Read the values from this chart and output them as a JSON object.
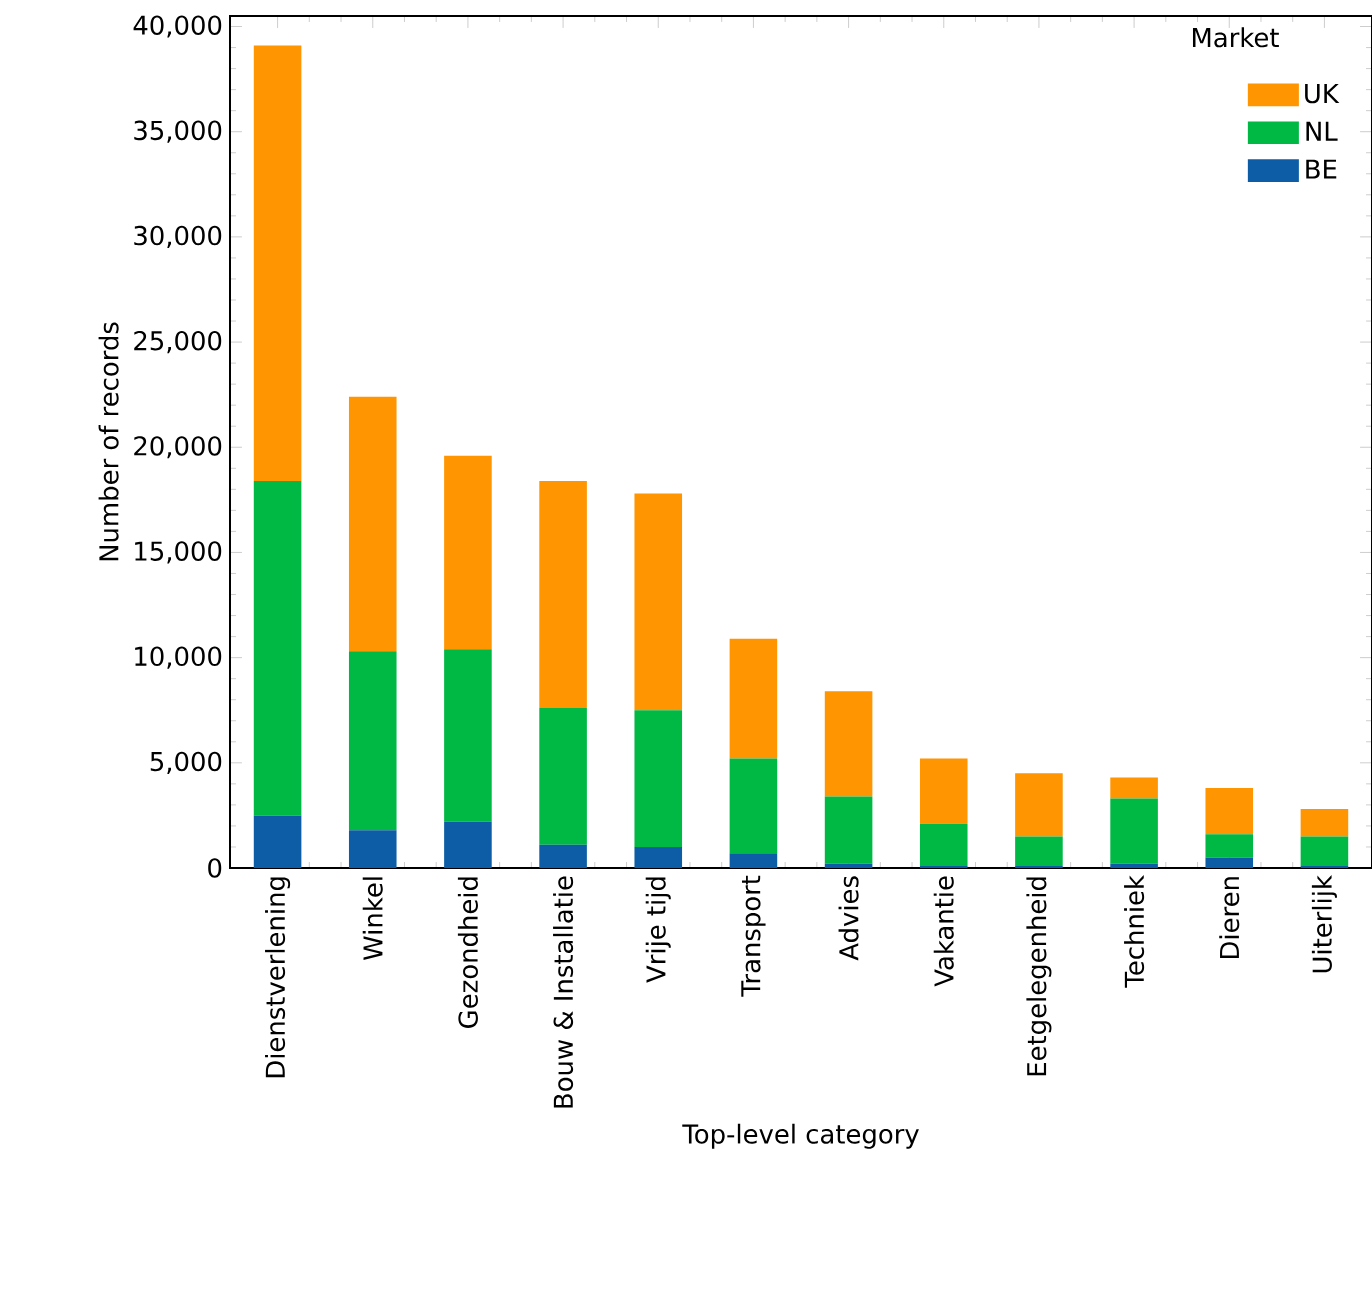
{
  "chart_data": {
    "type": "bar",
    "stacked": true,
    "xlabel": "Top-level category",
    "ylabel": "Number of records",
    "legend_title": "Market",
    "legend": "top right",
    "categories": [
      "Dienstverlening",
      "Winkel",
      "Gezondheid",
      "Bouw & Installatie",
      "Vrije tijd",
      "Transport",
      "Advies",
      "Vakantie",
      "Eetgelegenheid",
      "Techniek",
      "Dieren",
      "Uiterlijk"
    ],
    "series": [
      {
        "name": "BE",
        "color": "#0c5da5",
        "values": [
          2500,
          1800,
          2200,
          1100,
          1000,
          700,
          200,
          100,
          100,
          200,
          500,
          100
        ]
      },
      {
        "name": "NL",
        "color": "#00b945",
        "values": [
          15900,
          8500,
          8200,
          6500,
          6500,
          4500,
          3200,
          2000,
          1400,
          3100,
          1100,
          1400
        ]
      },
      {
        "name": "UK",
        "color": "#ff9500",
        "values": [
          20700,
          12100,
          9200,
          10800,
          10300,
          5700,
          5000,
          3100,
          3000,
          1000,
          2200,
          1300
        ]
      }
    ],
    "ylim": [
      0,
      40500
    ],
    "yticks": [
      {
        "value": 0,
        "label": "0"
      },
      {
        "value": 5000,
        "label": "5,000"
      },
      {
        "value": 10000,
        "label": "10,000"
      },
      {
        "value": 15000,
        "label": "15,000"
      },
      {
        "value": 20000,
        "label": "20,000"
      },
      {
        "value": 25000,
        "label": "25,000"
      },
      {
        "value": 30000,
        "label": "30,000"
      },
      {
        "value": 35000,
        "label": "35,000"
      },
      {
        "value": 40000,
        "label": "40,000"
      }
    ]
  }
}
